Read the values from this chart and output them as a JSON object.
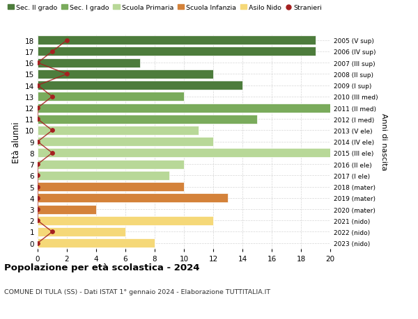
{
  "ages": [
    18,
    17,
    16,
    15,
    14,
    13,
    12,
    11,
    10,
    9,
    8,
    7,
    6,
    5,
    4,
    3,
    2,
    1,
    0
  ],
  "years_labels": [
    "2005 (V sup)",
    "2006 (IV sup)",
    "2007 (III sup)",
    "2008 (II sup)",
    "2009 (I sup)",
    "2010 (III med)",
    "2011 (II med)",
    "2012 (I med)",
    "2013 (V ele)",
    "2014 (IV ele)",
    "2015 (III ele)",
    "2016 (II ele)",
    "2017 (I ele)",
    "2018 (mater)",
    "2019 (mater)",
    "2020 (mater)",
    "2021 (nido)",
    "2022 (nido)",
    "2023 (nido)"
  ],
  "bar_values": [
    19,
    19,
    7,
    12,
    14,
    10,
    20,
    15,
    11,
    12,
    20,
    10,
    9,
    10,
    13,
    4,
    12,
    6,
    8
  ],
  "bar_colors": [
    "#4d7c3c",
    "#4d7c3c",
    "#4d7c3c",
    "#4d7c3c",
    "#4d7c3c",
    "#7aab5c",
    "#7aab5c",
    "#7aab5c",
    "#b8d898",
    "#b8d898",
    "#b8d898",
    "#b8d898",
    "#b8d898",
    "#d4823a",
    "#d4823a",
    "#d4823a",
    "#f5d878",
    "#f5d878",
    "#f5d878"
  ],
  "stranieri_values": [
    2,
    1,
    0,
    2,
    0,
    1,
    0,
    0,
    1,
    0,
    1,
    0,
    0,
    0,
    0,
    0,
    0,
    1,
    0
  ],
  "legend_labels": [
    "Sec. II grado",
    "Sec. I grado",
    "Scuola Primaria",
    "Scuola Infanzia",
    "Asilo Nido",
    "Stranieri"
  ],
  "legend_colors": [
    "#4d7c3c",
    "#7aab5c",
    "#b8d898",
    "#d4823a",
    "#f5d878",
    "#a52020"
  ],
  "title": "Popolazione per età scolastica - 2024",
  "subtitle": "COMUNE DI TULA (SS) - Dati ISTAT 1° gennaio 2024 - Elaborazione TUTTITALIA.IT",
  "ylabel": "Età alunni",
  "ylabel2": "Anni di nascita",
  "xlim": [
    0,
    20
  ],
  "background_color": "#ffffff",
  "stranieri_color": "#a52020",
  "grid_color": "#cccccc"
}
